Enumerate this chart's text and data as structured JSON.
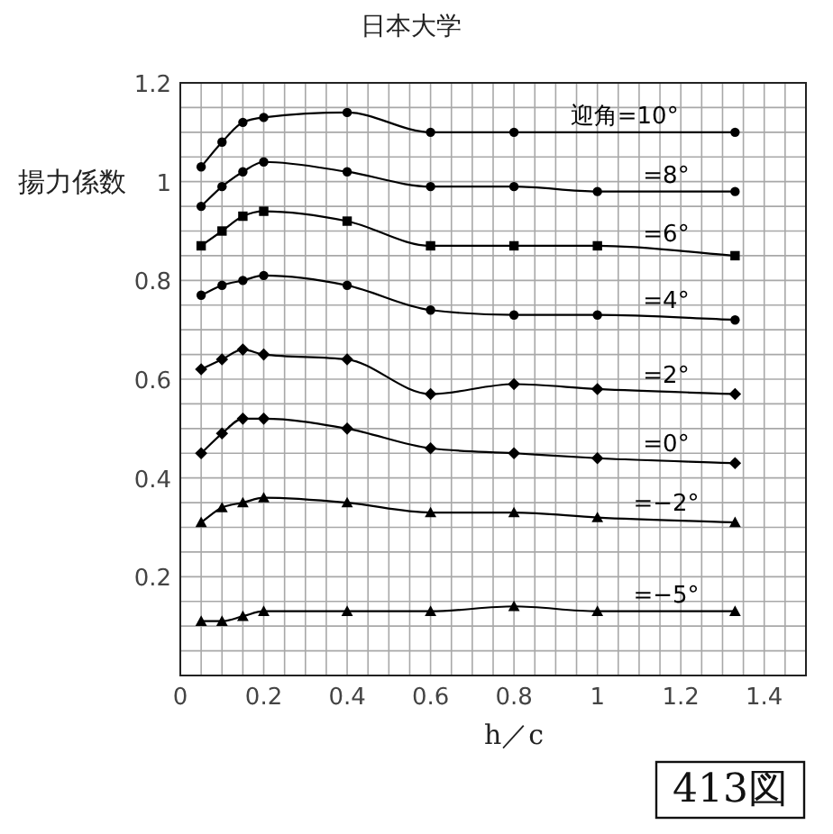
{
  "chart_data": {
    "type": "line",
    "title": "日本大学",
    "xlabel": "h／c",
    "ylabel": "揚力係数",
    "annotations": [
      "413図"
    ],
    "x": [
      0.05,
      0.1,
      0.15,
      0.2,
      0.4,
      0.6,
      0.8,
      1.0,
      1.33
    ],
    "xlim": [
      0,
      1.5
    ],
    "ylim": [
      0,
      1.2
    ],
    "xticks": [
      0,
      {
        "value": 0.05,
        "label": null
      },
      {
        "value": 0.1,
        "label": null
      },
      {
        "value": 0.15,
        "label": null
      },
      0.2,
      {
        "value": 0.25,
        "label": null
      },
      {
        "value": 0.3,
        "label": null
      },
      {
        "value": 0.35,
        "label": null
      },
      0.4,
      {
        "value": 0.45,
        "label": null
      },
      {
        "value": 0.5,
        "label": null
      },
      {
        "value": 0.55,
        "label": null
      },
      0.6,
      {
        "value": 0.65,
        "label": null
      },
      {
        "value": 0.7,
        "label": null
      },
      {
        "value": 0.75,
        "label": null
      },
      0.8,
      {
        "value": 0.85,
        "label": null
      },
      {
        "value": 0.9,
        "label": null
      },
      {
        "value": 0.95,
        "label": null
      },
      1,
      {
        "value": 1.05,
        "label": null
      },
      {
        "value": 1.1,
        "label": null
      },
      {
        "value": 1.15,
        "label": null
      },
      1.2,
      {
        "value": 1.25,
        "label": null
      },
      {
        "value": 1.3,
        "label": null
      },
      {
        "value": 1.35,
        "label": null
      },
      1.4,
      {
        "value": 1.45,
        "label": null
      },
      {
        "value": 1.5,
        "label": null
      }
    ],
    "yticks": [
      {
        "value": 0,
        "label": null
      },
      {
        "value": 0.05,
        "label": null
      },
      {
        "value": 0.1,
        "label": null
      },
      {
        "value": 0.15,
        "label": null
      },
      0.2,
      {
        "value": 0.25,
        "label": null
      },
      {
        "value": 0.3,
        "label": null
      },
      {
        "value": 0.35,
        "label": null
      },
      0.4,
      {
        "value": 0.45,
        "label": null
      },
      {
        "value": 0.5,
        "label": null
      },
      {
        "value": 0.55,
        "label": null
      },
      0.6,
      {
        "value": 0.65,
        "label": null
      },
      {
        "value": 0.7,
        "label": null
      },
      {
        "value": 0.75,
        "label": null
      },
      0.8,
      {
        "value": 0.85,
        "label": null
      },
      {
        "value": 0.9,
        "label": null
      },
      {
        "value": 0.95,
        "label": null
      },
      1,
      {
        "value": 1.05,
        "label": null
      },
      {
        "value": 1.1,
        "label": null
      },
      {
        "value": 1.15,
        "label": null
      },
      1.2
    ],
    "grid": true,
    "line_style": "solid",
    "series": [
      {
        "name": "迎角=10°",
        "color": "#000000",
        "marker": "circle",
        "x": [
          0.05,
          0.1,
          0.15,
          0.2,
          0.4,
          0.6,
          0.8,
          1.33
        ],
        "values": [
          1.03,
          1.08,
          1.12,
          1.13,
          1.14,
          1.1,
          1.1,
          1.1
        ]
      },
      {
        "name": "=8°",
        "color": "#000000",
        "marker": "circle",
        "values": [
          0.95,
          0.99,
          1.02,
          1.04,
          1.02,
          0.99,
          0.99,
          0.98,
          0.98
        ]
      },
      {
        "name": "=6°",
        "color": "#000000",
        "marker": "square",
        "values": [
          0.87,
          0.9,
          0.93,
          0.94,
          0.92,
          0.87,
          0.87,
          0.87,
          0.85
        ]
      },
      {
        "name": "=4°",
        "color": "#000000",
        "marker": "circle",
        "values": [
          0.77,
          0.79,
          0.8,
          0.81,
          0.79,
          0.74,
          0.73,
          0.73,
          0.72
        ]
      },
      {
        "name": "=2°",
        "color": "#000000",
        "marker": "diamond",
        "values": [
          0.62,
          0.64,
          0.66,
          0.65,
          0.64,
          0.57,
          0.59,
          0.58,
          0.57
        ]
      },
      {
        "name": "=0°",
        "color": "#000000",
        "marker": "diamond",
        "values": [
          0.45,
          0.49,
          0.52,
          0.52,
          0.5,
          0.46,
          0.45,
          0.44,
          0.43
        ]
      },
      {
        "name": "=−2°",
        "color": "#000000",
        "marker": "triangle",
        "values": [
          0.31,
          0.34,
          0.35,
          0.36,
          0.35,
          0.33,
          0.33,
          0.32,
          0.31
        ]
      },
      {
        "name": "=−5°",
        "color": "#000000",
        "marker": "triangle",
        "values": [
          0.11,
          0.11,
          0.12,
          0.13,
          0.13,
          0.13,
          0.14,
          0.13,
          0.13
        ]
      }
    ]
  }
}
